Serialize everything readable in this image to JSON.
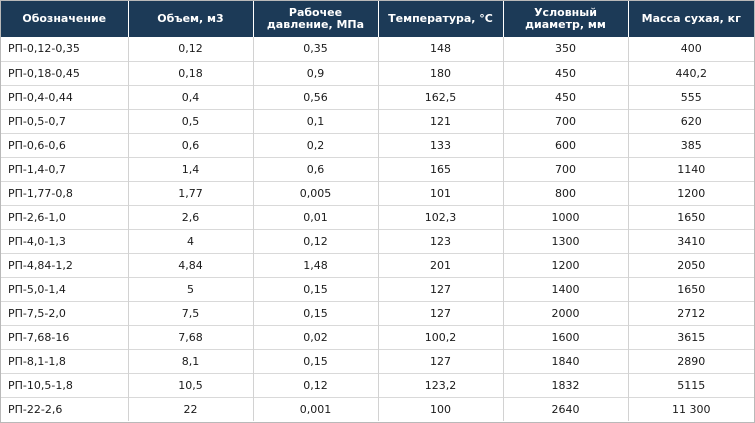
{
  "table": {
    "headers": [
      "Обозначение",
      "Объем, м3",
      "Рабочее давление, МПа",
      "Температура, °С",
      "Условный диаметр, мм",
      "Масса сухая, кг"
    ],
    "rows": [
      [
        "РП-0,12-0,35",
        "0,12",
        "0,35",
        "148",
        "350",
        "400"
      ],
      [
        "РП-0,18-0,45",
        "0,18",
        "0,9",
        "180",
        "450",
        "440,2"
      ],
      [
        "РП-0,4-0,44",
        "0,4",
        "0,56",
        "162,5",
        "450",
        "555"
      ],
      [
        "РП-0,5-0,7",
        "0,5",
        "0,1",
        "121",
        "700",
        "620"
      ],
      [
        "РП-0,6-0,6",
        "0,6",
        "0,2",
        "133",
        "600",
        "385"
      ],
      [
        "РП-1,4-0,7",
        "1,4",
        "0,6",
        "165",
        "700",
        "1140"
      ],
      [
        "РП-1,77-0,8",
        "1,77",
        "0,005",
        "101",
        "800",
        "1200"
      ],
      [
        "РП-2,6-1,0",
        "2,6",
        "0,01",
        "102,3",
        "1000",
        "1650"
      ],
      [
        "РП-4,0-1,3",
        "4",
        "0,12",
        "123",
        "1300",
        "3410"
      ],
      [
        "РП-4,84-1,2",
        "4,84",
        "1,48",
        "201",
        "1200",
        "2050"
      ],
      [
        "РП-5,0-1,4",
        "5",
        "0,15",
        "127",
        "1400",
        "1650"
      ],
      [
        "РП-7,5-2,0",
        "7,5",
        "0,15",
        "127",
        "2000",
        "2712"
      ],
      [
        "РП-7,68-16",
        "7,68",
        "0,02",
        "100,2",
        "1600",
        "3615"
      ],
      [
        "РП-8,1-1,8",
        "8,1",
        "0,15",
        "127",
        "1840",
        "2890"
      ],
      [
        "РП-10,5-1,8",
        "10,5",
        "0,12",
        "123,2",
        "1832",
        "5115"
      ],
      [
        "РП-22-2,6",
        "22",
        "0,001",
        "100",
        "2640",
        "11 300"
      ]
    ]
  },
  "colors": {
    "header_bg": "#1c3a57",
    "header_text": "#ffffff",
    "row_border": "#d9d9d9",
    "col_border": "#d2d2d2"
  }
}
